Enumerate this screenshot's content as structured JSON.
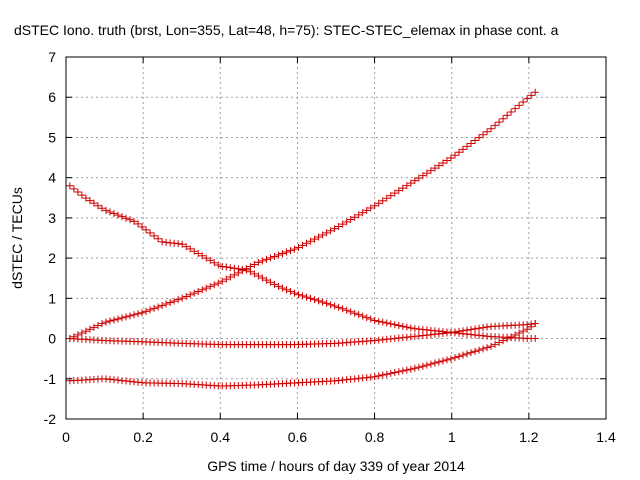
{
  "chart_data": {
    "type": "scatter",
    "title": "dSTEC Iono. truth (brst, Lon=355, Lat=48, h=75): STEC-STEC_elemax in phase cont. a",
    "xlabel": "GPS time / hours of day 339 of year 2014",
    "ylabel": "dSTEC  / TECUs",
    "xlim": [
      0,
      1.4
    ],
    "ylim": [
      -2,
      7
    ],
    "xticks": [
      "0",
      "0.2",
      "0.4",
      "0.6",
      "0.8",
      "1",
      "1.2",
      "1.4"
    ],
    "yticks": [
      "-2",
      "-1",
      "0",
      "1",
      "2",
      "3",
      "4",
      "5",
      "6",
      "7"
    ],
    "grid": true,
    "marker_color": "#cc0000",
    "series": [
      {
        "x": [
          0.01,
          0.1,
          0.2,
          0.3,
          0.4,
          0.5,
          0.6,
          0.7,
          0.8,
          0.9,
          1.0,
          1.1,
          1.15,
          1.2,
          1.22
        ],
        "y": [
          0.0,
          0.4,
          0.65,
          1.0,
          1.4,
          1.9,
          2.25,
          2.75,
          3.3,
          3.9,
          4.5,
          5.2,
          5.6,
          6.0,
          6.15
        ]
      },
      {
        "x": [
          0.01,
          0.05,
          0.1,
          0.18,
          0.25,
          0.3,
          0.4,
          0.47,
          0.55,
          0.6,
          0.7,
          0.8,
          0.9,
          1.0,
          1.1,
          1.2,
          1.22
        ],
        "y": [
          3.8,
          3.5,
          3.2,
          2.9,
          2.4,
          2.35,
          1.8,
          1.7,
          1.3,
          1.1,
          0.8,
          0.45,
          0.25,
          0.15,
          0.05,
          0.0,
          0.0
        ]
      },
      {
        "x": [
          0.01,
          0.1,
          0.2,
          0.3,
          0.4,
          0.5,
          0.6,
          0.7,
          0.8,
          0.9,
          1.0,
          1.1,
          1.2,
          1.22
        ],
        "y": [
          0.0,
          -0.05,
          -0.08,
          -0.12,
          -0.15,
          -0.15,
          -0.15,
          -0.12,
          -0.05,
          0.05,
          0.15,
          0.3,
          0.35,
          0.38
        ]
      },
      {
        "x": [
          0.01,
          0.1,
          0.2,
          0.3,
          0.4,
          0.5,
          0.6,
          0.7,
          0.8,
          0.9,
          1.0,
          1.1,
          1.2,
          1.22
        ],
        "y": [
          -1.05,
          -1.0,
          -1.1,
          -1.12,
          -1.18,
          -1.15,
          -1.1,
          -1.05,
          -0.95,
          -0.75,
          -0.5,
          -0.2,
          0.25,
          0.4
        ]
      }
    ]
  }
}
